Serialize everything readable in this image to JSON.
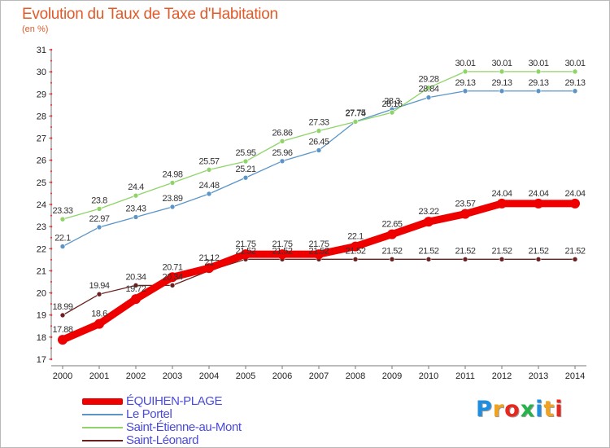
{
  "header": {
    "title": "Evolution du Taux de Taxe d'Habitation",
    "unit": "(en %)"
  },
  "chart_data": {
    "type": "line",
    "title": "Evolution du Taux de Taxe d'Habitation",
    "ylabel": "(en %)",
    "xlabel": "",
    "x": [
      "2000",
      "2001",
      "2002",
      "2003",
      "2004",
      "2005",
      "2006",
      "2007",
      "2008",
      "2009",
      "2010",
      "2011",
      "2012",
      "2013",
      "2014"
    ],
    "ylim": [
      17,
      31
    ],
    "yticks": [
      17,
      18,
      19,
      20,
      21,
      22,
      23,
      24,
      25,
      26,
      27,
      28,
      29,
      30,
      31
    ],
    "grid": false,
    "legend_position": "bottom-left",
    "series": [
      {
        "name": "Saint-Léonard",
        "color": "#6b1f1f",
        "values": [
          18.99,
          19.94,
          20.34,
          20.34,
          21.0,
          21.52,
          21.52,
          21.52,
          21.52,
          21.52,
          21.52,
          21.52,
          21.52,
          21.52,
          21.52
        ],
        "labels": [
          "18.99",
          "19.94",
          "20.34",
          "20.34",
          "21",
          "21.52",
          "21.52",
          "21.52",
          "21.52",
          "21.52",
          "21.52",
          "21.52",
          "21.52",
          "21.52",
          "21.52"
        ]
      },
      {
        "name": "Le Portel",
        "color": "#5b95c8",
        "values": [
          22.1,
          22.97,
          23.43,
          23.89,
          24.48,
          25.21,
          25.96,
          26.45,
          27.75,
          28.3,
          28.84,
          29.13,
          29.13,
          29.13,
          29.13
        ],
        "labels": [
          "22.1",
          "22.97",
          "23.43",
          "23.89",
          "24.48",
          "25.21",
          "25.96",
          "26.45",
          "27.75",
          "28.3",
          "28.84",
          "29.13",
          "29.13",
          "29.13",
          "29.13"
        ]
      },
      {
        "name": "Saint-Étienne-au-Mont",
        "color": "#8fd468",
        "values": [
          23.33,
          23.8,
          24.4,
          24.98,
          25.57,
          25.95,
          26.86,
          27.33,
          27.74,
          28.16,
          29.28,
          30.01,
          30.01,
          30.01,
          30.01
        ],
        "labels": [
          "23.33",
          "23.8",
          "24.4",
          "24.98",
          "25.57",
          "25.95",
          "26.86",
          "27.33",
          "27.74",
          "28.16",
          "29.28",
          "30.01",
          "30.01",
          "30.01",
          "30.01"
        ]
      },
      {
        "name": "ÉQUIHEN-PLAGE",
        "color": "#ee0000",
        "values": [
          17.88,
          18.6,
          19.72,
          20.71,
          21.12,
          21.75,
          21.75,
          21.75,
          22.1,
          22.65,
          23.22,
          23.57,
          24.04,
          24.04,
          24.04
        ],
        "labels": [
          "17.88",
          "18.6",
          "19.72",
          "20.71",
          "21.12",
          "21.75",
          "21.75",
          "21.75",
          "22.1",
          "22.65",
          "23.22",
          "23.57",
          "24.04",
          "24.04",
          "24.04"
        ]
      }
    ]
  },
  "legend": {
    "items": [
      {
        "label": "ÉQUIHEN-PLAGE",
        "color": "#ee0000"
      },
      {
        "label": "Le Portel",
        "color": "#5b95c8"
      },
      {
        "label": "Saint-Étienne-au-Mont",
        "color": "#8fd468"
      },
      {
        "label": "Saint-Léonard",
        "color": "#6b1f1f"
      }
    ]
  },
  "logo": {
    "letters": [
      {
        "ch": "P",
        "color": "#1e8fe0"
      },
      {
        "ch": "r",
        "color": "#f2a21f"
      },
      {
        "ch": "o",
        "color": "#e8271f"
      },
      {
        "ch": "x",
        "color": "#25b34a"
      },
      {
        "ch": "i",
        "color": "#1e8fe0"
      },
      {
        "ch": "t",
        "color": "#f2a21f"
      },
      {
        "ch": "i",
        "color": "#e8271f"
      }
    ]
  }
}
